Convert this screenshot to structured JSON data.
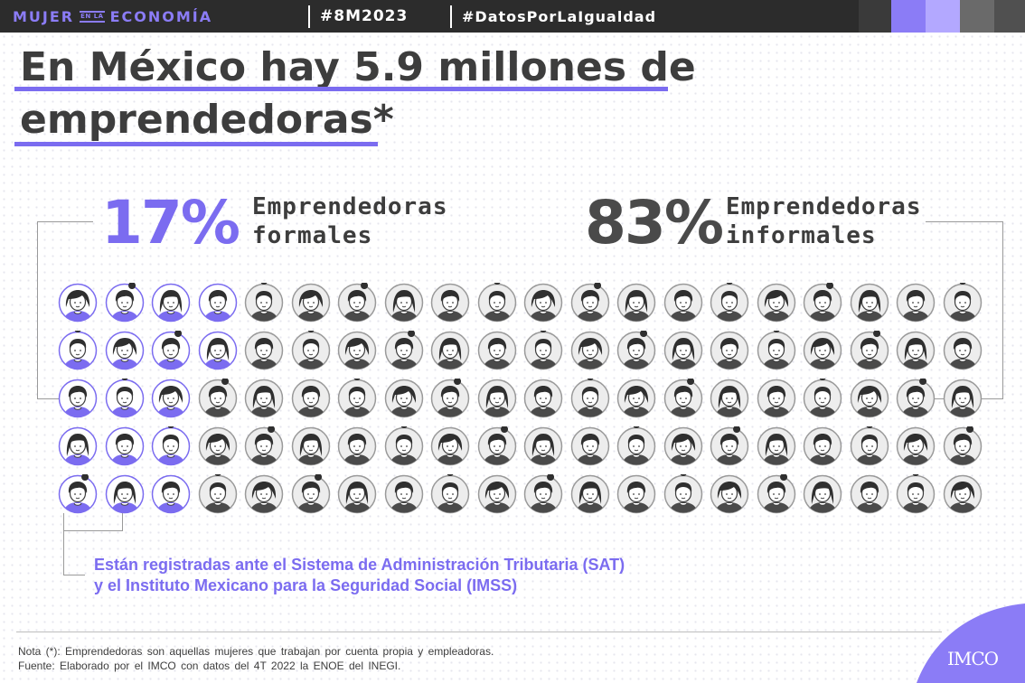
{
  "header": {
    "brand_main_1": "MUJER",
    "brand_small": "EN LA",
    "brand_main_2": "ECONOMÍA",
    "hashtag_1": "#8M2023",
    "hashtag_2": "#DatosPorLaIgualdad",
    "color_blocks": [
      "#3a3a3a",
      "#505050",
      "#8b7cf6",
      "#b3a8ff",
      "#6a6a6a",
      "#2c2c2c"
    ]
  },
  "title": {
    "line1": "En México hay 5.9 millones de",
    "line2": "emprendedoras*"
  },
  "stats": {
    "formal": {
      "percent": "17%",
      "label_line1": "Emprendedoras",
      "label_line2": "formales",
      "color": "#7b6cf0",
      "share": 17
    },
    "informal": {
      "percent": "83%",
      "label_line1": "Emprendedoras",
      "label_line2": "informales",
      "color": "#4a4a4a",
      "share": 83
    }
  },
  "grid": {
    "columns": 20,
    "rows": 5,
    "formal_count": 17,
    "formal_layout": "column-major",
    "face_variants": [
      "bob-hair",
      "short-hair",
      "side-bun",
      "top-bun",
      "long-hair"
    ],
    "formal_color": "#7b6cf0",
    "informal_color": "#4a4a4a"
  },
  "note": {
    "line1": "Están registradas ante el Sistema de Administración Tributaria (SAT)",
    "line2": "y el Instituto Mexicano para la Seguridad Social (IMSS)"
  },
  "footer": {
    "nota": "Nota (*): Emprendedoras son aquellas mujeres que trabajan por cuenta propia y empleadoras.",
    "fuente": "Fuente: Elaborado por el IMCO con datos del 4T 2022 la ENOE del INEGI.",
    "logo": "IMCO"
  }
}
